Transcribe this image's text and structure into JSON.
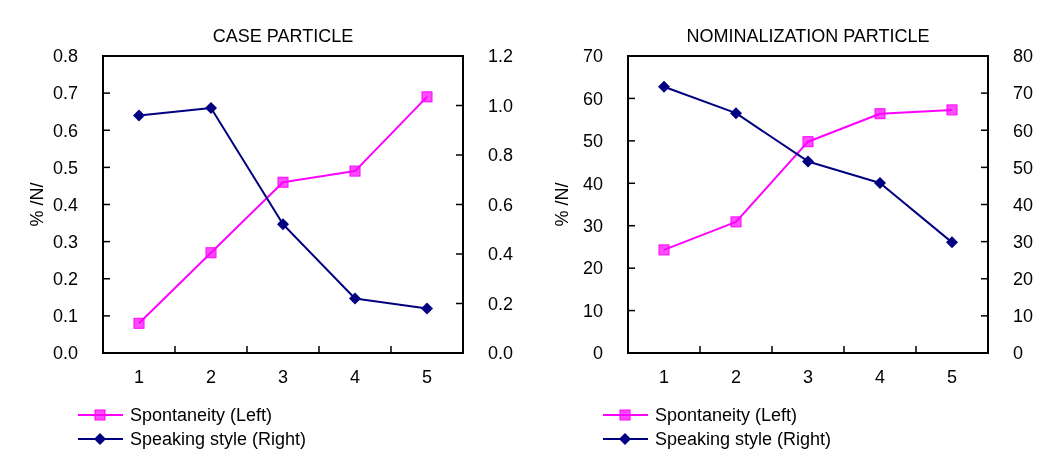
{
  "chart_data": [
    {
      "type": "line",
      "title": "CASE PARTICLE",
      "ylabel": "% /N/",
      "categories": [
        "1",
        "2",
        "3",
        "4",
        "5"
      ],
      "legend": "bottom",
      "grid": false,
      "ylim": [
        0,
        0.8
      ],
      "yticks": [
        {
          "value": 0,
          "label": "0.0"
        },
        0.1,
        0.2,
        0.3,
        0.4,
        0.5,
        0.6,
        0.7,
        0.8
      ],
      "y2lim": [
        0,
        1.2
      ],
      "y2ticks": [
        {
          "value": 0,
          "label": "0.0"
        },
        0.2,
        0.4,
        0.6,
        0.8,
        {
          "value": 1,
          "label": "1.0"
        },
        1.2
      ],
      "series": [
        {
          "name": "Spontaneity (Left)",
          "color": "#ff00ff",
          "marker": "square",
          "values": [
            0.08,
            0.27,
            0.46,
            0.49,
            0.69
          ]
        },
        {
          "name": "Speaking style (Right)",
          "color": "#000080",
          "marker": "diamond",
          "axis": "y2",
          "values": [
            0.96,
            0.99,
            0.52,
            0.22,
            0.18
          ]
        }
      ]
    },
    {
      "type": "line",
      "title": "NOMINALIZATION PARTICLE",
      "ylabel": "% /N/",
      "categories": [
        "1",
        "2",
        "3",
        "4",
        "5"
      ],
      "legend": "bottom",
      "grid": false,
      "ylim": [
        0,
        70
      ],
      "yticks": [
        0,
        10,
        20,
        30,
        40,
        50,
        60,
        70
      ],
      "y2lim": [
        0,
        80
      ],
      "y2ticks": [
        0,
        10,
        20,
        30,
        40,
        50,
        60,
        70,
        80
      ],
      "series": [
        {
          "name": "Spontaneity (Left)",
          "color": "#ff00ff",
          "marker": "square",
          "values": [
            24.3,
            30.9,
            49.8,
            56.4,
            57.3
          ]
        },
        {
          "name": "Speaking style (Right)",
          "color": "#000080",
          "marker": "diamond",
          "axis": "y2",
          "values": [
            71.7,
            64.6,
            51.6,
            45.8,
            29.8
          ]
        }
      ]
    }
  ]
}
